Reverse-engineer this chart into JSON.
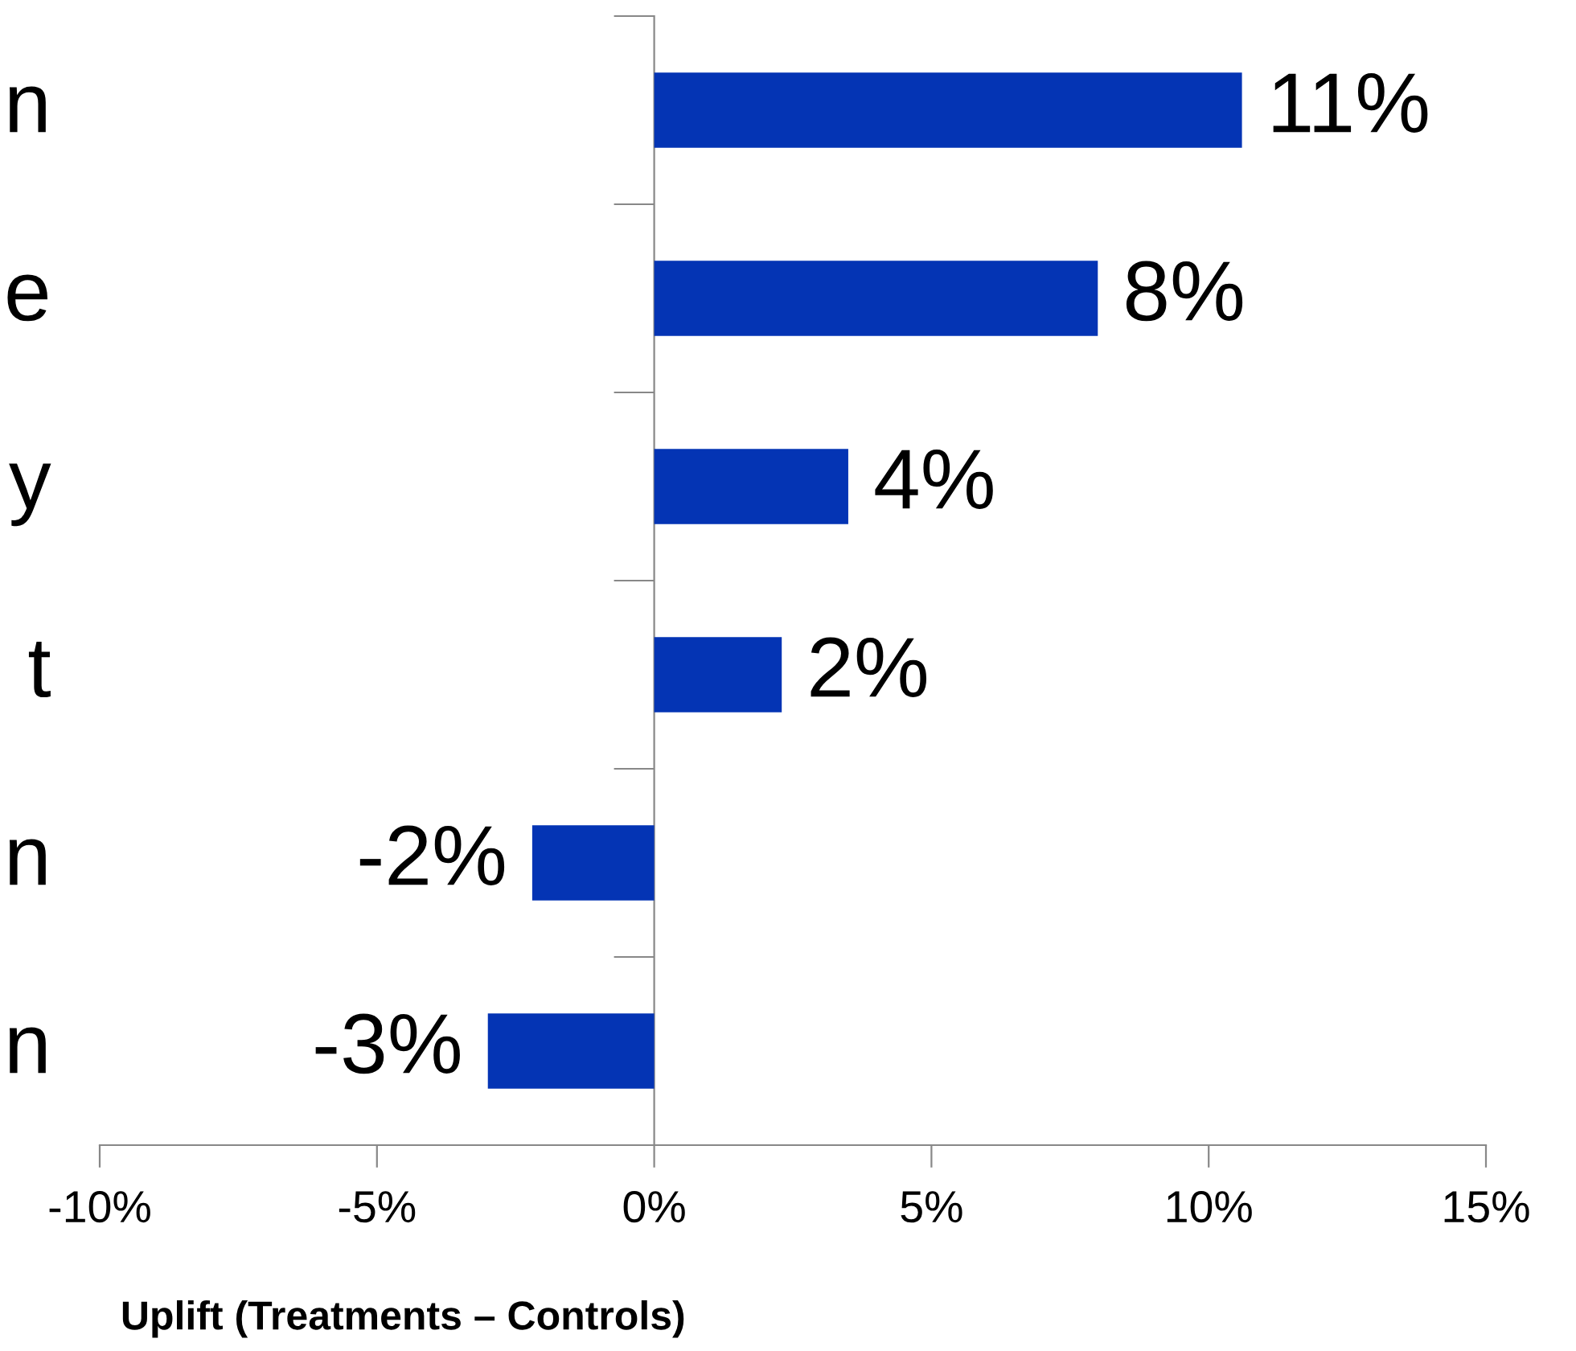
{
  "chart_data": {
    "type": "bar",
    "orientation": "horizontal",
    "categories": [
      "n",
      "e",
      "y",
      "t",
      "n",
      "n"
    ],
    "values": [
      10.6,
      8.0,
      3.5,
      2.3,
      -2.2,
      -3.0
    ],
    "value_labels": [
      "11%",
      "8%",
      "4%",
      "2%",
      "-2%",
      "-3%"
    ],
    "color": "#0434b4",
    "xlim": [
      -10,
      15
    ],
    "xticks": [
      {
        "value": -10,
        "label": "-10%"
      },
      {
        "value": -5,
        "label": "-5%"
      },
      {
        "value": 0,
        "label": "0%"
      },
      {
        "value": 5,
        "label": "5%"
      },
      {
        "value": 10,
        "label": "10%"
      },
      {
        "value": 15,
        "label": "15%"
      }
    ],
    "xlabel": "Uplift (Treatments – Controls)"
  }
}
